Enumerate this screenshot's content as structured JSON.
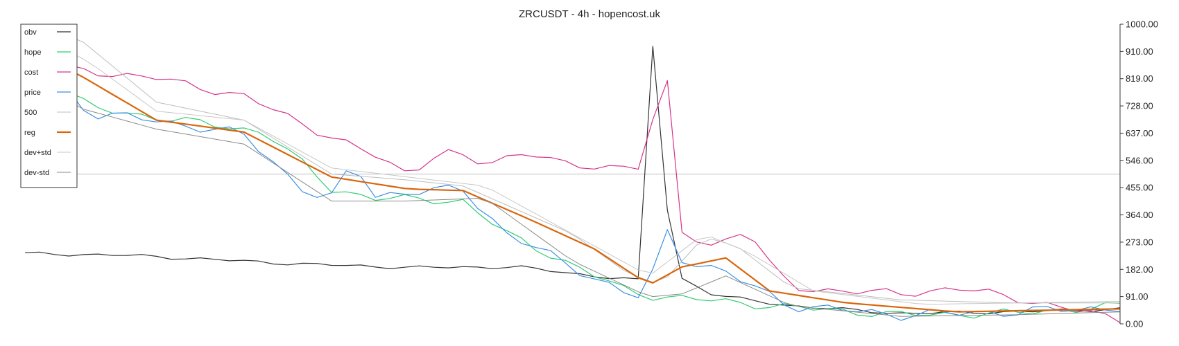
{
  "chart_data": {
    "type": "line",
    "title": "ZRCUSDT - 4h - hopencost.uk",
    "xlabel": "",
    "ylabel": "",
    "ylim": [
      0,
      1000
    ],
    "y_axis_side": "right",
    "grid": false,
    "legend_position": "top-left",
    "y_ticks": [
      "1000.00",
      "910.00",
      "819.00",
      "728.00",
      "637.00",
      "546.00",
      "455.00",
      "364.00",
      "273.00",
      "182.00",
      "91.00",
      "0.00"
    ],
    "reference_line": 500,
    "x": [
      0,
      4,
      8,
      12,
      16,
      20,
      24,
      28,
      32,
      36,
      40,
      44,
      48,
      52,
      56,
      60,
      64,
      68,
      72,
      76,
      80,
      84,
      88,
      92,
      96,
      100,
      104,
      108,
      112,
      116,
      120,
      124,
      128,
      132,
      136,
      140,
      144,
      148,
      152,
      156,
      160,
      164,
      168,
      172,
      176,
      180,
      184,
      188,
      192,
      196,
      200,
      204,
      208,
      212,
      216,
      220,
      224,
      228,
      232,
      236,
      240,
      244,
      248,
      252,
      256,
      260,
      264,
      268,
      272,
      276,
      280,
      284,
      288,
      292,
      296,
      300
    ],
    "series": [
      {
        "name": "obv",
        "color": "#333333",
        "width": 1.2,
        "values": [
          null,
          null,
          null,
          null,
          null,
          null,
          null,
          null,
          null,
          null,
          null,
          null,
          null,
          null,
          null,
          null,
          null,
          null,
          null,
          null,
          null,
          null,
          null,
          null,
          null,
          null,
          null,
          null,
          null,
          null,
          null,
          null,
          null,
          null,
          null,
          null,
          null,
          null,
          null,
          null,
          null,
          null,
          null,
          null,
          null,
          null,
          null,
          null,
          null,
          null,
          null,
          null,
          null,
          null,
          null,
          null,
          null,
          null,
          null,
          null,
          null,
          null,
          null,
          null,
          null,
          null,
          null,
          null,
          null,
          null,
          null,
          null,
          null,
          null,
          null,
          null
        ]
      },
      {
        "name": "hope",
        "color": "#2ecc71",
        "width": 1.2,
        "values": [
          null,
          null,
          null,
          null,
          null,
          null,
          null,
          null,
          null,
          null,
          null,
          null,
          null,
          null,
          null,
          null,
          null,
          null,
          null,
          null,
          null,
          null,
          null,
          null,
          null,
          null,
          null,
          null,
          null,
          null,
          null,
          null,
          null,
          null,
          null,
          null,
          null,
          null,
          null,
          null,
          null,
          null,
          null,
          null,
          null,
          null,
          null,
          null,
          null,
          null,
          null,
          null,
          null,
          null,
          null,
          null,
          null,
          null,
          null,
          null,
          null,
          null,
          null,
          null,
          null,
          null,
          null,
          null,
          null,
          null,
          null,
          null,
          null,
          null,
          null,
          null
        ]
      },
      {
        "name": "cost",
        "color": "#d6338a",
        "width": 1.2,
        "values": [
          null,
          null,
          null,
          null,
          null,
          null,
          null,
          null,
          null,
          null,
          null,
          null,
          null,
          null,
          null,
          null,
          null,
          null,
          null,
          null,
          null,
          null,
          null,
          null,
          null,
          null,
          null,
          null,
          null,
          null,
          null,
          null,
          null,
          null,
          null,
          null,
          null,
          null,
          null,
          null,
          null,
          null,
          null,
          null,
          null,
          null,
          null,
          null,
          null,
          null,
          null,
          null,
          null,
          null,
          null,
          null,
          null,
          null,
          null,
          null,
          null,
          null,
          null,
          null,
          null,
          null,
          null,
          null,
          null,
          null,
          null,
          null,
          null,
          null,
          null,
          null
        ]
      },
      {
        "name": "price",
        "color": "#3a8ee6",
        "width": 1.2,
        "values": [
          null,
          null,
          null,
          null,
          null,
          null,
          null,
          null,
          null,
          null,
          null,
          null,
          null,
          null,
          null,
          null,
          null,
          null,
          null,
          null,
          null,
          null,
          null,
          null,
          null,
          null,
          null,
          null,
          null,
          null,
          null,
          null,
          null,
          null,
          null,
          null,
          null,
          null,
          null,
          null,
          null,
          null,
          null,
          null,
          null,
          null,
          null,
          null,
          null,
          null,
          null,
          null,
          null,
          null,
          null,
          null,
          null,
          null,
          null,
          null,
          null,
          null,
          null,
          null,
          null,
          null,
          null,
          null,
          null,
          null,
          null,
          null,
          null,
          null,
          null,
          null
        ]
      },
      {
        "name": "500",
        "color": "#bdbdbd",
        "width": 1.0,
        "values": [
          null,
          null,
          null,
          null,
          null,
          null,
          null,
          null,
          null,
          null,
          null,
          null,
          null,
          null,
          null,
          null,
          null,
          null,
          null,
          null,
          null,
          null,
          null,
          null,
          null,
          null,
          null,
          null,
          null,
          null,
          null,
          null,
          null,
          null,
          null,
          null,
          null,
          null,
          null,
          null,
          null,
          null,
          null,
          null,
          null,
          null,
          null,
          null,
          null,
          null,
          null,
          null,
          null,
          null,
          null,
          null,
          null,
          null,
          null,
          null,
          null,
          null,
          null,
          null,
          null,
          null,
          null,
          null,
          null,
          null,
          null,
          null,
          null,
          null,
          null,
          null
        ]
      },
      {
        "name": "reg",
        "color": "#d9650b",
        "width": 2.2,
        "values": [
          null,
          null,
          null,
          null,
          null,
          null,
          null,
          null,
          null,
          null,
          null,
          null,
          null,
          null,
          null,
          null,
          null,
          null,
          null,
          null,
          null,
          null,
          null,
          null,
          null,
          null,
          null,
          null,
          null,
          null,
          null,
          null,
          null,
          null,
          null,
          null,
          null,
          null,
          null,
          null,
          null,
          null,
          null,
          null,
          null,
          null,
          null,
          null,
          null,
          null,
          null,
          null,
          null,
          null,
          null,
          null,
          null,
          null,
          null,
          null,
          null,
          null,
          null,
          null,
          null,
          null,
          null,
          null,
          null,
          null,
          null,
          null,
          null,
          null,
          null,
          null
        ]
      },
      {
        "name": "dev+std",
        "color": "#c8c8c8",
        "width": 1.0,
        "values": [
          null,
          null,
          null,
          null,
          null,
          null,
          null,
          null,
          null,
          null,
          null,
          null,
          null,
          null,
          null,
          null,
          null,
          null,
          null,
          null,
          null,
          null,
          null,
          null,
          null,
          null,
          null,
          null,
          null,
          null,
          null,
          null,
          null,
          null,
          null,
          null,
          null,
          null,
          null,
          null,
          null,
          null,
          null,
          null,
          null,
          null,
          null,
          null,
          null,
          null,
          null,
          null,
          null,
          null,
          null,
          null,
          null,
          null,
          null,
          null,
          null,
          null,
          null,
          null,
          null,
          null,
          null,
          null,
          null,
          null,
          null,
          null,
          null,
          null,
          null,
          null
        ]
      },
      {
        "name": "dev-std",
        "color": "#8a8a8a",
        "width": 1.0,
        "values": [
          null,
          null,
          null,
          null,
          null,
          null,
          null,
          null,
          null,
          null,
          null,
          null,
          null,
          null,
          null,
          null,
          null,
          null,
          null,
          null,
          null,
          null,
          null,
          null,
          null,
          null,
          null,
          null,
          null,
          null,
          null,
          null,
          null,
          null,
          null,
          null,
          null,
          null,
          null,
          null,
          null,
          null,
          null,
          null,
          null,
          null,
          null,
          null,
          null,
          null,
          null,
          null,
          null,
          null,
          null,
          null,
          null,
          null,
          null,
          null,
          null,
          null,
          null,
          null,
          null,
          null,
          null,
          null,
          null,
          null,
          null,
          null,
          null,
          null,
          null,
          null
        ]
      }
    ]
  }
}
